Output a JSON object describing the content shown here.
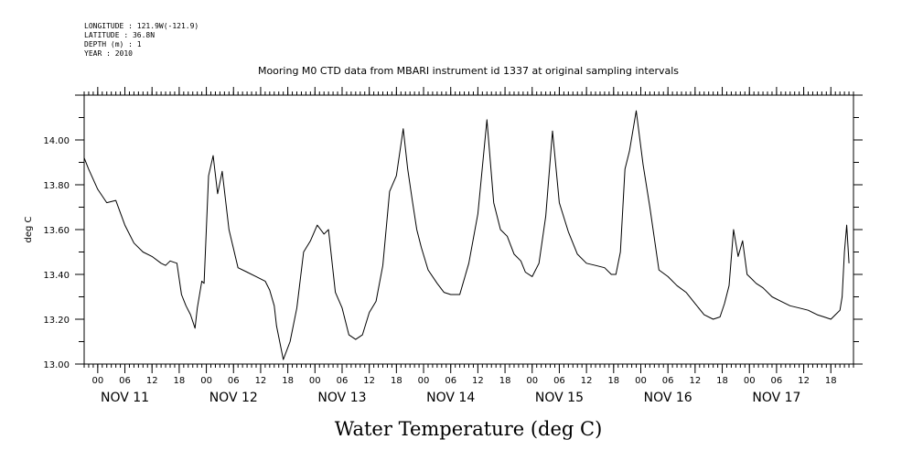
{
  "header": {
    "longitude": "LONGITUDE : 121.9W(-121.9)",
    "latitude": "LATITUDE : 36.8N",
    "depth": "DEPTH (m) : 1",
    "year": "YEAR : 2010"
  },
  "chart_data": {
    "type": "line",
    "title": "Mooring M0 CTD data from MBARI instrument id 1337 at original sampling intervals",
    "xlabel": "Water Temperature (deg C)",
    "ylabel": "deg C",
    "xlim": [
      "2010-11-10T21:00",
      "2010-11-17T23:00"
    ],
    "ylim": [
      13.0,
      14.2
    ],
    "y_ticks": [
      "13.00",
      "13.20",
      "13.40",
      "13.60",
      "13.80",
      "14.00"
    ],
    "x_hour_ticks": [
      "00",
      "06",
      "12",
      "18",
      "00",
      "06",
      "12",
      "18",
      "00",
      "06",
      "12",
      "18",
      "00",
      "06",
      "12",
      "18",
      "00",
      "06",
      "12",
      "18",
      "00",
      "06",
      "12",
      "18",
      "00",
      "06",
      "12",
      "18"
    ],
    "x_day_labels": [
      "NOV 11",
      "NOV 12",
      "NOV 13",
      "NOV 14",
      "NOV 15",
      "NOV 16",
      "NOV 17"
    ],
    "grid": false,
    "series": [
      {
        "color": "#000000",
        "x": [
          "2010-11-10T21:00",
          "2010-11-10T22:00",
          "2010-11-11T00:00",
          "2010-11-11T02:00",
          "2010-11-11T04:00",
          "2010-11-11T06:00",
          "2010-11-11T08:00",
          "2010-11-11T10:00",
          "2010-11-11T12:00",
          "2010-11-11T14:00",
          "2010-11-11T15:00",
          "2010-11-11T16:00",
          "2010-11-11T17:30",
          "2010-11-11T18:30",
          "2010-11-11T19:30",
          "2010-11-11T20:30",
          "2010-11-11T21:30",
          "2010-11-11T22:00",
          "2010-11-11T23:00",
          "2010-11-11T23:30",
          "2010-11-12T00:30",
          "2010-11-12T01:30",
          "2010-11-12T02:30",
          "2010-11-12T03:30",
          "2010-11-12T05:00",
          "2010-11-12T07:00",
          "2010-11-12T09:00",
          "2010-11-12T11:00",
          "2010-11-12T13:00",
          "2010-11-12T14:00",
          "2010-11-12T15:00",
          "2010-11-12T15:30",
          "2010-11-12T17:00",
          "2010-11-12T18:30",
          "2010-11-12T20:00",
          "2010-11-12T21:30",
          "2010-11-12T23:00",
          "2010-11-13T00:30",
          "2010-11-13T02:00",
          "2010-11-13T03:00",
          "2010-11-13T04:30",
          "2010-11-13T06:00",
          "2010-11-13T07:30",
          "2010-11-13T09:00",
          "2010-11-13T10:30",
          "2010-11-13T12:00",
          "2010-11-13T13:30",
          "2010-11-13T15:00",
          "2010-11-13T16:30",
          "2010-11-13T18:00",
          "2010-11-13T19:30",
          "2010-11-13T20:30",
          "2010-11-13T21:30",
          "2010-11-13T22:30",
          "2010-11-13T23:30",
          "2010-11-14T01:00",
          "2010-11-14T03:00",
          "2010-11-14T04:30",
          "2010-11-14T06:00",
          "2010-11-14T08:00",
          "2010-11-14T10:00",
          "2010-11-14T12:00",
          "2010-11-14T14:00",
          "2010-11-14T15:30",
          "2010-11-14T17:00",
          "2010-11-14T18:30",
          "2010-11-14T20:00",
          "2010-11-14T21:30",
          "2010-11-14T22:30",
          "2010-11-15T00:00",
          "2010-11-15T01:30",
          "2010-11-15T03:00",
          "2010-11-15T04:30",
          "2010-11-15T06:00",
          "2010-11-15T08:00",
          "2010-11-15T10:00",
          "2010-11-15T12:00",
          "2010-11-15T14:00",
          "2010-11-15T16:00",
          "2010-11-15T17:30",
          "2010-11-15T18:30",
          "2010-11-15T19:30",
          "2010-11-15T20:30",
          "2010-11-15T21:30",
          "2010-11-15T23:00",
          "2010-11-16T00:30",
          "2010-11-16T02:00",
          "2010-11-16T04:00",
          "2010-11-16T06:00",
          "2010-11-16T08:00",
          "2010-11-16T10:00",
          "2010-11-16T12:00",
          "2010-11-16T14:00",
          "2010-11-16T16:00",
          "2010-11-16T17:30",
          "2010-11-16T18:30",
          "2010-11-16T19:30",
          "2010-11-16T20:30",
          "2010-11-16T21:30",
          "2010-11-16T22:30",
          "2010-11-16T23:30",
          "2010-11-17T00:30",
          "2010-11-17T01:30",
          "2010-11-17T03:00",
          "2010-11-17T05:00",
          "2010-11-17T07:00",
          "2010-11-17T09:00",
          "2010-11-17T11:00",
          "2010-11-17T13:00",
          "2010-11-17T15:00",
          "2010-11-17T16:30",
          "2010-11-17T18:00",
          "2010-11-17T19:00",
          "2010-11-17T20:00",
          "2010-11-17T20:30",
          "2010-11-17T21:00",
          "2010-11-17T21:30",
          "2010-11-17T22:00"
        ],
        "y": [
          13.92,
          13.87,
          13.78,
          13.72,
          13.73,
          13.62,
          13.54,
          13.5,
          13.48,
          13.45,
          13.44,
          13.46,
          13.45,
          13.31,
          13.26,
          13.22,
          13.16,
          13.25,
          13.37,
          13.36,
          13.84,
          13.93,
          13.76,
          13.86,
          13.6,
          13.43,
          13.41,
          13.39,
          13.37,
          13.33,
          13.26,
          13.17,
          13.02,
          13.1,
          13.25,
          13.5,
          13.55,
          13.62,
          13.58,
          13.6,
          13.32,
          13.25,
          13.13,
          13.11,
          13.13,
          13.23,
          13.28,
          13.44,
          13.77,
          13.84,
          14.05,
          13.87,
          13.73,
          13.6,
          13.52,
          13.42,
          13.36,
          13.32,
          13.31,
          13.31,
          13.45,
          13.67,
          14.09,
          13.72,
          13.6,
          13.57,
          13.49,
          13.46,
          13.41,
          13.39,
          13.45,
          13.66,
          14.04,
          13.72,
          13.59,
          13.49,
          13.45,
          13.44,
          13.43,
          13.4,
          13.4,
          13.5,
          13.87,
          13.95,
          14.13,
          13.89,
          13.7,
          13.42,
          13.39,
          13.35,
          13.32,
          13.27,
          13.22,
          13.2,
          13.21,
          13.27,
          13.35,
          13.6,
          13.48,
          13.55,
          13.4,
          13.38,
          13.36,
          13.34,
          13.3,
          13.28,
          13.26,
          13.25,
          13.24,
          13.22,
          13.21,
          13.2,
          13.22,
          13.24,
          13.3,
          13.5,
          13.62,
          13.45
        ]
      }
    ]
  }
}
